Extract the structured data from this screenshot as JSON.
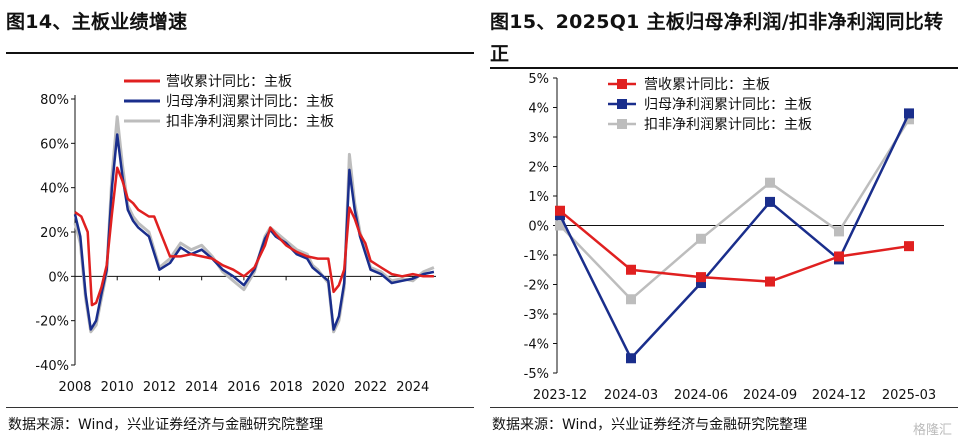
{
  "left": {
    "title": "图14、主板业绩增速",
    "source": "数据来源：Wind，兴业证券经济与金融研究院整理",
    "chart_data": {
      "type": "line",
      "title": "图14、主板业绩增速",
      "xlabel": "",
      "ylabel": "",
      "x_tick_labels": [
        "2008",
        "2010",
        "2012",
        "2014",
        "2016",
        "2018",
        "2020",
        "2022",
        "2024"
      ],
      "x_ticks": [
        2008,
        2010,
        2012,
        2014,
        2016,
        2018,
        2020,
        2022,
        2024
      ],
      "xlim": [
        2008,
        2025.1
      ],
      "y_tick_labels": [
        "-40%",
        "-20%",
        "0%",
        "20%",
        "40%",
        "60%",
        "80%"
      ],
      "y_ticks": [
        -40,
        -20,
        0,
        20,
        40,
        60,
        80
      ],
      "ylim": [
        -40,
        80
      ],
      "grid": false,
      "legend_position": "top",
      "series": [
        {
          "name": "营收累计同比：主板",
          "color": "#e02020",
          "x": [
            2008,
            2008.3,
            2008.6,
            2008.8,
            2009,
            2009.25,
            2009.5,
            2009.75,
            2010,
            2010.25,
            2010.5,
            2010.75,
            2011,
            2011.5,
            2011.75,
            2012,
            2012.5,
            2013,
            2013.5,
            2014,
            2014.5,
            2015,
            2015.5,
            2016,
            2016.5,
            2017,
            2017.25,
            2017.5,
            2018,
            2018.5,
            2019,
            2019.5,
            2020,
            2020.25,
            2020.5,
            2020.75,
            2021,
            2021.25,
            2021.5,
            2021.75,
            2022,
            2022.5,
            2023,
            2023.5,
            2024,
            2024.5,
            2025
          ],
          "y": [
            29,
            27,
            20,
            -13,
            -12,
            -5,
            5,
            28,
            49,
            43,
            35,
            33,
            30,
            27,
            27,
            21,
            9,
            9,
            10,
            9,
            8,
            5,
            3,
            0,
            4,
            14,
            22,
            19,
            14,
            11,
            9,
            8,
            8,
            -7,
            -4,
            3,
            31,
            26,
            19,
            15,
            7,
            4,
            1,
            0,
            1,
            0,
            0
          ]
        },
        {
          "name": "归母净利润累计同比：主板",
          "color": "#1a2e8c",
          "x": [
            2008,
            2008.25,
            2008.5,
            2008.75,
            2009,
            2009.25,
            2009.5,
            2009.75,
            2010,
            2010.25,
            2010.5,
            2010.75,
            2011,
            2011.5,
            2012,
            2012.5,
            2013,
            2013.5,
            2014,
            2014.5,
            2015,
            2015.5,
            2016,
            2016.5,
            2017,
            2017.25,
            2017.5,
            2018,
            2018.5,
            2019,
            2019.25,
            2019.5,
            2020,
            2020.25,
            2020.5,
            2020.75,
            2021,
            2021.25,
            2021.5,
            2022,
            2022.5,
            2023,
            2023.5,
            2024,
            2024.5,
            2025
          ],
          "y": [
            28,
            18,
            -8,
            -24,
            -20,
            -8,
            3,
            40,
            64,
            45,
            30,
            25,
            22,
            18,
            3,
            6,
            13,
            10,
            12,
            8,
            3,
            0,
            -4,
            3,
            17,
            21,
            18,
            15,
            10,
            8,
            4,
            2,
            -2,
            -24,
            -18,
            -3,
            48,
            30,
            18,
            3,
            1,
            -3,
            -2,
            -1,
            1,
            2
          ]
        },
        {
          "name": "扣非净利润累计同比：主板",
          "color": "#bdbdbd",
          "x": [
            2008,
            2008.25,
            2008.5,
            2008.75,
            2009,
            2009.25,
            2009.5,
            2009.75,
            2010,
            2010.25,
            2010.5,
            2010.75,
            2011,
            2011.5,
            2012,
            2012.5,
            2013,
            2013.5,
            2014,
            2014.5,
            2015,
            2015.5,
            2016,
            2016.5,
            2017,
            2017.25,
            2017.5,
            2018,
            2018.5,
            2019,
            2019.25,
            2019.5,
            2020,
            2020.25,
            2020.5,
            2020.75,
            2021,
            2021.25,
            2021.5,
            2022,
            2022.5,
            2023,
            2023.5,
            2024,
            2024.5,
            2025
          ],
          "y": [
            24,
            15,
            -10,
            -25,
            -22,
            -10,
            2,
            45,
            72,
            50,
            32,
            27,
            24,
            20,
            4,
            8,
            15,
            12,
            14,
            9,
            2,
            -2,
            -6,
            2,
            18,
            22,
            20,
            16,
            12,
            10,
            5,
            3,
            -3,
            -25,
            -20,
            -5,
            55,
            33,
            20,
            4,
            2,
            -2,
            -1,
            -2,
            2,
            4
          ]
        }
      ]
    }
  },
  "right": {
    "title": "图15、2025Q1 主板归母净利润/扣非净利润同比转正",
    "source": "数据来源：Wind，兴业证券经济与金融研究院整理",
    "watermark": "格隆汇",
    "chart_data": {
      "type": "line",
      "title": "图15、2025Q1 主板归母净利润/扣非净利润同比转正",
      "xlabel": "",
      "ylabel": "",
      "categories": [
        "2023-12",
        "2024-03",
        "2024-06",
        "2024-09",
        "2024-12",
        "2025-03"
      ],
      "y_tick_labels": [
        "-5%",
        "-4%",
        "-3%",
        "-2%",
        "-1%",
        "0%",
        "1%",
        "2%",
        "3%",
        "4%",
        "5%"
      ],
      "y_ticks": [
        -5,
        -4,
        -3,
        -2,
        -1,
        0,
        1,
        2,
        3,
        4,
        5
      ],
      "ylim": [
        -5,
        5
      ],
      "grid": false,
      "legend_position": "top-left",
      "series": [
        {
          "name": "营收累计同比：主板",
          "color": "#e02020",
          "values": [
            0.5,
            -1.5,
            -1.75,
            -1.9,
            -1.05,
            -0.7
          ]
        },
        {
          "name": "归母净利润累计同比：主板",
          "color": "#1a2e8c",
          "values": [
            0.35,
            -4.5,
            -1.95,
            0.8,
            -1.15,
            3.8
          ]
        },
        {
          "name": "扣非净利润累计同比：主板",
          "color": "#bdbdbd",
          "values": [
            0.0,
            -2.5,
            -0.45,
            1.45,
            -0.2,
            3.6
          ]
        }
      ]
    }
  }
}
